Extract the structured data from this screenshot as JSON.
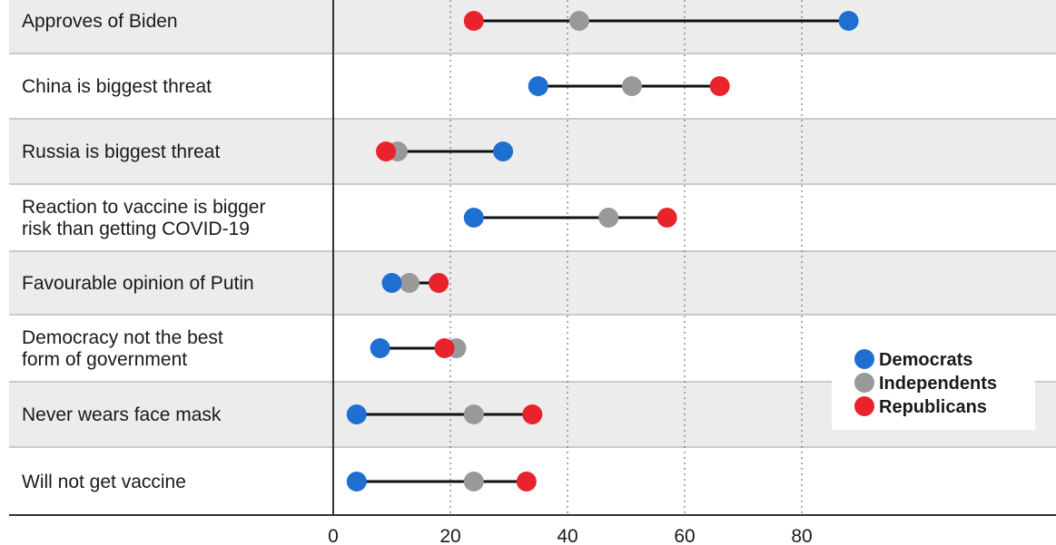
{
  "chart_data": {
    "type": "dumbbell",
    "title": "",
    "xlabel": "",
    "ylabel": "",
    "xlim": [
      0,
      100
    ],
    "xticks": [
      "0",
      "20",
      "40",
      "60",
      "80"
    ],
    "tick_values": [
      0,
      20,
      40,
      60,
      80
    ],
    "grid": "dotted vertical at 20, 40, 60, 80",
    "legend_position": "bottom-right",
    "categories": [
      [
        "Approves of Biden"
      ],
      [
        "China is biggest threat"
      ],
      [
        "Russia is biggest threat"
      ],
      [
        "Reaction to vaccine is bigger",
        "risk than getting COVID-19"
      ],
      [
        "Favourable opinion of Putin"
      ],
      [
        "Democracy not the best",
        "form of government"
      ],
      [
        "Never wears face mask"
      ],
      [
        "Will not get vaccine"
      ]
    ],
    "series": [
      {
        "name": "Democrats",
        "color": "#1f6fd1",
        "values": [
          88,
          35,
          29,
          24,
          10,
          8,
          4,
          4
        ]
      },
      {
        "name": "Independents",
        "color": "#999999",
        "values": [
          42,
          51,
          11,
          47,
          13,
          21,
          24,
          24
        ]
      },
      {
        "name": "Republicans",
        "color": "#e8232b",
        "values": [
          24,
          66,
          9,
          57,
          18,
          19,
          34,
          33
        ]
      }
    ]
  },
  "colors": {
    "band": "#ececec",
    "separator": "#b8b8b8",
    "connector": "#111111",
    "grid": "#777777"
  }
}
